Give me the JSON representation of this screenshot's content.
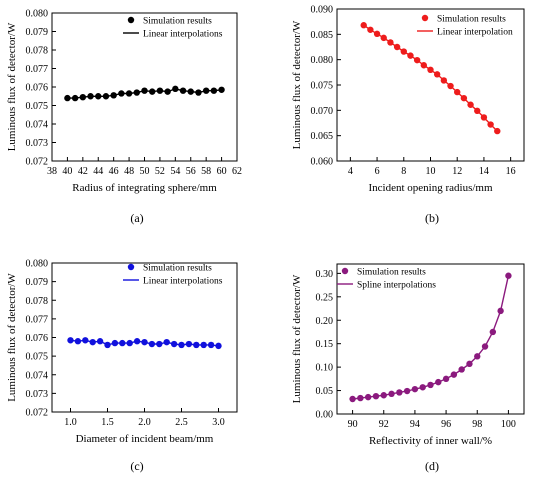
{
  "chart_data": [
    {
      "id": "a",
      "type": "line",
      "caption": "(a)",
      "xlabel": "Radius of integrating sphere/mm",
      "ylabel": "Luminous flux of detector/W",
      "xlim": [
        38,
        62
      ],
      "ylim": [
        0.072,
        0.08
      ],
      "x_ticks": [
        "38",
        "40",
        "42",
        "44",
        "46",
        "48",
        "50",
        "52",
        "54",
        "56",
        "58",
        "60",
        "62"
      ],
      "y_ticks": [
        "0.072",
        "0.073",
        "0.074",
        "0.075",
        "0.076",
        "0.077",
        "0.078",
        "0.079",
        "0.080"
      ],
      "legend_position": "top-right",
      "marker_color": "#000000",
      "line_color": "#000000",
      "series": [
        {
          "name": "Simulation results",
          "style": "markers",
          "x": [
            40,
            41,
            42,
            43,
            44,
            45,
            46,
            47,
            48,
            49,
            50,
            51,
            52,
            53,
            54,
            55,
            56,
            57,
            58,
            59,
            60
          ],
          "y": [
            0.0754,
            0.0754,
            0.07545,
            0.0755,
            0.0755,
            0.0755,
            0.07555,
            0.07565,
            0.07565,
            0.0757,
            0.0758,
            0.07575,
            0.0758,
            0.07575,
            0.0759,
            0.0758,
            0.07575,
            0.0757,
            0.0758,
            0.0758,
            0.07585
          ]
        },
        {
          "name": "Linear interpolations",
          "style": "line",
          "x": [
            40,
            41,
            42,
            43,
            44,
            45,
            46,
            47,
            48,
            49,
            50,
            51,
            52,
            53,
            54,
            55,
            56,
            57,
            58,
            59,
            60
          ],
          "y": [
            0.0754,
            0.0754,
            0.07545,
            0.0755,
            0.0755,
            0.0755,
            0.07555,
            0.07565,
            0.07565,
            0.0757,
            0.0758,
            0.07575,
            0.0758,
            0.07575,
            0.0759,
            0.0758,
            0.07575,
            0.0757,
            0.0758,
            0.0758,
            0.07585
          ]
        }
      ]
    },
    {
      "id": "b",
      "type": "line",
      "caption": "(b)",
      "xlabel": "Incident opening radius/mm",
      "ylabel": "Luminous flux of detector/W",
      "xlim": [
        3,
        17
      ],
      "ylim": [
        0.06,
        0.09
      ],
      "x_ticks": [
        "4",
        "6",
        "8",
        "10",
        "12",
        "14",
        "16"
      ],
      "y_ticks": [
        "0.060",
        "0.065",
        "0.070",
        "0.075",
        "0.080",
        "0.085",
        "0.090"
      ],
      "legend_position": "top-right",
      "marker_color": "#ee1c1c",
      "line_color": "#ee1c1c",
      "series": [
        {
          "name": "Simulation results",
          "style": "markers",
          "x": [
            5,
            5.5,
            6,
            6.5,
            7,
            7.5,
            8,
            8.5,
            9,
            9.5,
            10,
            10.5,
            11,
            11.5,
            12,
            12.5,
            13,
            13.5,
            14,
            14.5,
            15
          ],
          "y": [
            0.0868,
            0.0859,
            0.0851,
            0.0843,
            0.0834,
            0.0825,
            0.0816,
            0.0808,
            0.0799,
            0.0789,
            0.078,
            0.0771,
            0.0759,
            0.0748,
            0.0736,
            0.0724,
            0.0711,
            0.0699,
            0.0686,
            0.0672,
            0.0659
          ]
        },
        {
          "name": "Linear interpolation",
          "style": "line",
          "x": [
            5,
            5.5,
            6,
            6.5,
            7,
            7.5,
            8,
            8.5,
            9,
            9.5,
            10,
            10.5,
            11,
            11.5,
            12,
            12.5,
            13,
            13.5,
            14,
            14.5,
            15
          ],
          "y": [
            0.0868,
            0.0859,
            0.0851,
            0.0843,
            0.0834,
            0.0825,
            0.0816,
            0.0808,
            0.0799,
            0.0789,
            0.078,
            0.0771,
            0.0759,
            0.0748,
            0.0736,
            0.0724,
            0.0711,
            0.0699,
            0.0686,
            0.0672,
            0.0659
          ]
        }
      ]
    },
    {
      "id": "c",
      "type": "line",
      "caption": "(c)",
      "xlabel": "Diameter of incident beam/mm",
      "ylabel": "Luminous flux of detector/W",
      "xlim": [
        0.75,
        3.25
      ],
      "ylim": [
        0.072,
        0.08
      ],
      "x_ticks": [
        "1.0",
        "1.5",
        "2.0",
        "2.5",
        "3.0"
      ],
      "y_ticks": [
        "0.072",
        "0.073",
        "0.074",
        "0.075",
        "0.076",
        "0.077",
        "0.078",
        "0.079",
        "0.080"
      ],
      "legend_position": "top-right",
      "marker_color": "#1111dd",
      "line_color": "#1111dd",
      "series": [
        {
          "name": "Simulation results",
          "style": "markers",
          "x": [
            1.0,
            1.1,
            1.2,
            1.3,
            1.4,
            1.5,
            1.6,
            1.7,
            1.8,
            1.9,
            2.0,
            2.1,
            2.2,
            2.3,
            2.4,
            2.5,
            2.6,
            2.7,
            2.8,
            2.9,
            3.0
          ],
          "y": [
            0.07585,
            0.0758,
            0.07585,
            0.07575,
            0.0758,
            0.0756,
            0.0757,
            0.0757,
            0.0757,
            0.0758,
            0.07575,
            0.07565,
            0.07565,
            0.07575,
            0.07565,
            0.0756,
            0.07565,
            0.0756,
            0.0756,
            0.0756,
            0.07555
          ]
        },
        {
          "name": "Linear interpolations",
          "style": "line",
          "x": [
            1.0,
            1.1,
            1.2,
            1.3,
            1.4,
            1.5,
            1.6,
            1.7,
            1.8,
            1.9,
            2.0,
            2.1,
            2.2,
            2.3,
            2.4,
            2.5,
            2.6,
            2.7,
            2.8,
            2.9,
            3.0
          ],
          "y": [
            0.07585,
            0.0758,
            0.07585,
            0.07575,
            0.0758,
            0.0756,
            0.0757,
            0.0757,
            0.0757,
            0.0758,
            0.07575,
            0.07565,
            0.07565,
            0.07575,
            0.07565,
            0.0756,
            0.07565,
            0.0756,
            0.0756,
            0.0756,
            0.07555
          ]
        }
      ]
    },
    {
      "id": "d",
      "type": "line",
      "caption": "(d)",
      "xlabel": "Reflectivity of inner wall/%",
      "ylabel": "Luminous flux of detector/W",
      "xlim": [
        89,
        101
      ],
      "ylim": [
        0.0,
        0.32
      ],
      "x_ticks": [
        "90",
        "92",
        "94",
        "96",
        "98",
        "100"
      ],
      "y_ticks": [
        "0.00",
        "0.05",
        "0.10",
        "0.15",
        "0.20",
        "0.25",
        "0.30"
      ],
      "legend_position": "top-left",
      "marker_color": "#8b1a7e",
      "line_color": "#8b1a7e",
      "series": [
        {
          "name": "Simulation results",
          "style": "markers",
          "x": [
            90,
            90.5,
            91,
            91.5,
            92,
            92.5,
            93,
            93.5,
            94,
            94.5,
            95,
            95.5,
            96,
            96.5,
            97,
            97.5,
            98,
            98.5,
            99,
            99.5,
            100
          ],
          "y": [
            0.032,
            0.034,
            0.036,
            0.038,
            0.04,
            0.043,
            0.046,
            0.049,
            0.053,
            0.057,
            0.062,
            0.068,
            0.075,
            0.084,
            0.095,
            0.107,
            0.123,
            0.144,
            0.175,
            0.22,
            0.295
          ]
        },
        {
          "name": "Spline interpolations",
          "style": "line",
          "x": [
            90,
            90.5,
            91,
            91.5,
            92,
            92.5,
            93,
            93.5,
            94,
            94.5,
            95,
            95.5,
            96,
            96.5,
            97,
            97.5,
            98,
            98.5,
            99,
            99.5,
            100
          ],
          "y": [
            0.032,
            0.034,
            0.036,
            0.038,
            0.04,
            0.043,
            0.046,
            0.049,
            0.053,
            0.057,
            0.062,
            0.068,
            0.075,
            0.084,
            0.095,
            0.107,
            0.123,
            0.144,
            0.175,
            0.22,
            0.295
          ]
        }
      ]
    }
  ]
}
